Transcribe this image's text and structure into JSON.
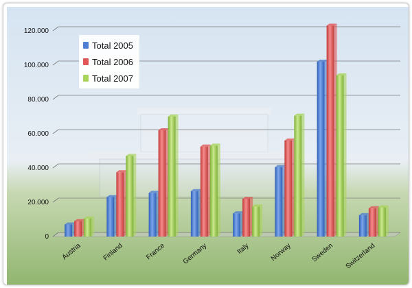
{
  "chart_data": {
    "type": "bar",
    "title": "",
    "xlabel": "",
    "ylabel": "",
    "categories": [
      "Austria",
      "Finland",
      "France",
      "Germany",
      "Italy",
      "Norway",
      "Sweden",
      "Switzerland"
    ],
    "series": [
      {
        "name": "Total 2005",
        "color": "#4f7fd1",
        "values": [
          7000,
          23000,
          25500,
          26500,
          13500,
          40500,
          102000,
          12500
        ]
      },
      {
        "name": "Total 2006",
        "color": "#e05757",
        "values": [
          9000,
          37500,
          62000,
          52500,
          22000,
          56000,
          123000,
          16500
        ]
      },
      {
        "name": "Total 2007",
        "color": "#a8d45a",
        "values": [
          10500,
          47000,
          70000,
          53000,
          17500,
          70500,
          94000,
          17000
        ]
      }
    ],
    "ylim": [
      0,
      120000
    ],
    "yticks": [
      "0",
      "20.000",
      "40.000",
      "60.000",
      "80.000",
      "100.000",
      "120.000"
    ],
    "ytick_values": [
      0,
      20000,
      40000,
      60000,
      80000,
      100000,
      120000
    ],
    "grid": true,
    "legend_position": "top-left"
  }
}
